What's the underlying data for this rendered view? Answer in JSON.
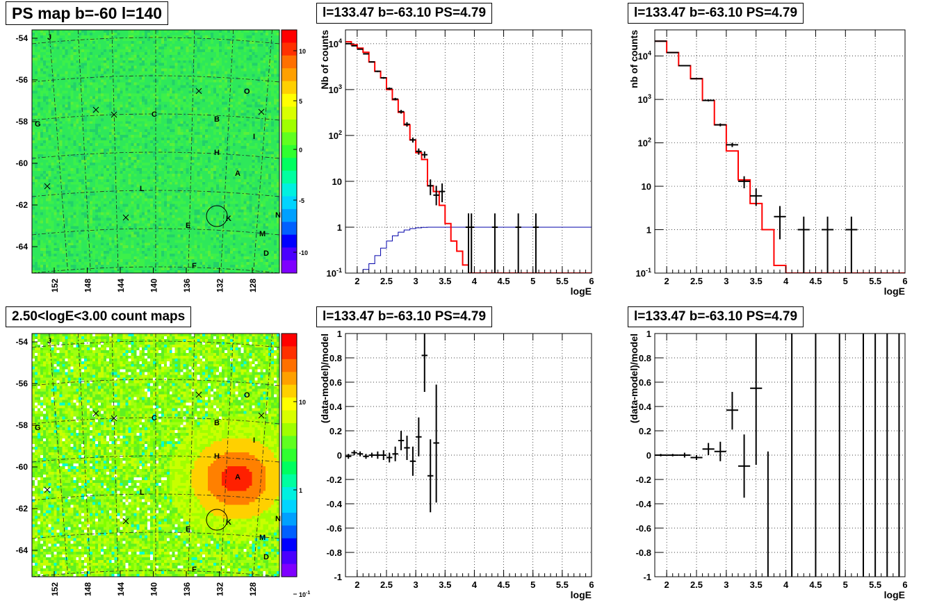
{
  "panel_titles": {
    "ps_map": "PS map b=-60 l=140",
    "count_map": "2.50<logE<3.00 count maps",
    "spec_left": "l=133.47 b=-63.10 PS=4.79",
    "spec_right": "l=133.47 b=-63.10 PS=4.79",
    "resid_left": "l=133.47 b=-63.10 PS=4.79",
    "resid_right": "l=133.47 b=-63.10 PS=4.79"
  },
  "colors": {
    "model": "#ff0000",
    "data": "#000000",
    "reference": "#0000aa"
  },
  "chart_data": [
    {
      "type": "heatmap",
      "title": "PS map b=-60 l=140",
      "y_ticks": [
        "-54",
        "-56",
        "-58",
        "-60",
        "-62",
        "-64"
      ],
      "x_ticks": [
        "152",
        "148",
        "144",
        "140",
        "136",
        "132",
        "128"
      ],
      "colorbar_ticks": [
        "10",
        "5",
        "0",
        "-5",
        "-10"
      ],
      "source_labels": [
        "J",
        "O",
        "G",
        "C",
        "B",
        "I",
        "H",
        "A",
        "L",
        "K",
        "E",
        "M",
        "N",
        "D",
        "F"
      ],
      "grid": "on"
    },
    {
      "type": "heatmap",
      "title": "2.50<logE<3.00 count maps",
      "y_ticks": [
        "-54",
        "-56",
        "-58",
        "-60",
        "-62",
        "-64"
      ],
      "x_ticks": [
        "152",
        "148",
        "144",
        "140",
        "136",
        "132",
        "128"
      ],
      "colorbar_ticks": [
        "10",
        "1",
        "10"
      ],
      "colorbar_exponent": "-1",
      "source_labels": [
        "J",
        "O",
        "G",
        "C",
        "B",
        "I",
        "H",
        "A",
        "L",
        "K",
        "E",
        "M",
        "N",
        "D",
        "F"
      ],
      "grid": "on"
    },
    {
      "type": "line",
      "title": "l=133.47 b=-63.10 PS=4.79",
      "xlabel": "logE",
      "ylabel": "Nb of counts",
      "yscale": "log",
      "xlim": [
        1.8,
        6
      ],
      "ylim": [
        0.1,
        20000
      ],
      "x_ticks": [
        "2",
        "2.5",
        "3",
        "3.5",
        "4",
        "4.5",
        "5",
        "5.5",
        "6"
      ],
      "y_ticks": [
        {
          "value": 10000,
          "base": "10",
          "exp": "4"
        },
        {
          "value": 1000,
          "base": "10",
          "exp": "3"
        },
        {
          "value": 100,
          "base": "10",
          "exp": "2"
        },
        {
          "value": 10,
          "base": "10",
          "exp": ""
        },
        {
          "value": 1,
          "base": "1",
          "exp": ""
        },
        {
          "value": 0.1,
          "base": "10",
          "exp": "-1"
        }
      ],
      "model_edges": [
        1.8,
        1.9,
        2.0,
        2.1,
        2.2,
        2.3,
        2.4,
        2.5,
        2.6,
        2.7,
        2.8,
        2.9,
        3.0,
        3.1,
        3.2,
        3.3,
        3.4,
        3.5,
        3.6,
        3.7,
        3.8,
        3.9,
        4.0,
        6.0
      ],
      "model_values": [
        11000,
        9500,
        8000,
        6500,
        4000,
        2500,
        1800,
        1000,
        600,
        320,
        170,
        80,
        42,
        30,
        8,
        6,
        3,
        1.2,
        0.5,
        0.3,
        0.15,
        0.1,
        0.1
      ],
      "reference_edges": [
        2.0,
        2.1,
        2.2,
        2.3,
        2.4,
        2.5,
        2.6,
        2.7,
        2.8,
        2.9,
        3.0,
        3.1,
        3.2,
        3.3,
        6.0
      ],
      "reference_values": [
        0.1,
        0.12,
        0.16,
        0.24,
        0.35,
        0.5,
        0.65,
        0.78,
        0.87,
        0.93,
        0.97,
        0.99,
        1.0,
        1.0
      ],
      "data_points": [
        {
          "x": 1.85,
          "y": 10000,
          "lo": 9800,
          "hi": 10200,
          "xw": 0.05
        },
        {
          "x": 1.95,
          "y": 9000,
          "lo": 8800,
          "hi": 9200,
          "xw": 0.05
        },
        {
          "x": 2.05,
          "y": 7600,
          "lo": 7400,
          "hi": 7800,
          "xw": 0.05
        },
        {
          "x": 2.15,
          "y": 6000,
          "lo": 5850,
          "hi": 6150,
          "xw": 0.05
        },
        {
          "x": 2.25,
          "y": 4000,
          "lo": 3880,
          "hi": 4120,
          "xw": 0.05
        },
        {
          "x": 2.35,
          "y": 2500,
          "lo": 2400,
          "hi": 2600,
          "xw": 0.05
        },
        {
          "x": 2.45,
          "y": 1800,
          "lo": 1720,
          "hi": 1880,
          "xw": 0.05
        },
        {
          "x": 2.55,
          "y": 1050,
          "lo": 990,
          "hi": 1110,
          "xw": 0.05
        },
        {
          "x": 2.65,
          "y": 620,
          "lo": 580,
          "hi": 660,
          "xw": 0.05
        },
        {
          "x": 2.75,
          "y": 330,
          "lo": 300,
          "hi": 360,
          "xw": 0.05
        },
        {
          "x": 2.85,
          "y": 175,
          "lo": 155,
          "hi": 195,
          "xw": 0.05
        },
        {
          "x": 2.95,
          "y": 80,
          "lo": 70,
          "hi": 90,
          "xw": 0.05
        },
        {
          "x": 3.05,
          "y": 45,
          "lo": 38,
          "hi": 52,
          "xw": 0.05
        },
        {
          "x": 3.15,
          "y": 38,
          "lo": 32,
          "hi": 45,
          "xw": 0.05
        },
        {
          "x": 3.25,
          "y": 8,
          "lo": 5,
          "hi": 11,
          "xw": 0.05
        },
        {
          "x": 3.35,
          "y": 5,
          "lo": 3,
          "hi": 8,
          "xw": 0.05
        },
        {
          "x": 3.45,
          "y": 6,
          "lo": 3.5,
          "hi": 9,
          "xw": 0.05
        },
        {
          "x": 3.9,
          "y": 1,
          "lo": 0.1,
          "hi": 2,
          "xw": 0.05
        },
        {
          "x": 3.95,
          "y": 1,
          "lo": 0.1,
          "hi": 2,
          "xw": 0.05
        },
        {
          "x": 4.35,
          "y": 1,
          "lo": 0.1,
          "hi": 2,
          "xw": 0.05
        },
        {
          "x": 4.75,
          "y": 1,
          "lo": 0.1,
          "hi": 2,
          "xw": 0.05
        },
        {
          "x": 5.05,
          "y": 1,
          "lo": 0.1,
          "hi": 2,
          "xw": 0.05
        }
      ],
      "grid": "on"
    },
    {
      "type": "line",
      "title": "l=133.47 b=-63.10 PS=4.79",
      "xlabel": "logE",
      "ylabel": "nb of counts",
      "yscale": "log",
      "xlim": [
        1.8,
        6
      ],
      "ylim": [
        0.1,
        40000
      ],
      "x_ticks": [
        "2",
        "2.5",
        "3",
        "3.5",
        "4",
        "4.5",
        "5",
        "5.5",
        "6"
      ],
      "y_ticks": [
        {
          "value": 10000,
          "base": "10",
          "exp": "4"
        },
        {
          "value": 1000,
          "base": "10",
          "exp": "3"
        },
        {
          "value": 100,
          "base": "10",
          "exp": "2"
        },
        {
          "value": 10,
          "base": "10",
          "exp": ""
        },
        {
          "value": 1,
          "base": "1",
          "exp": ""
        },
        {
          "value": 0.1,
          "base": "10",
          "exp": "-1"
        }
      ],
      "model_edges": [
        1.8,
        2.0,
        2.2,
        2.4,
        2.6,
        2.8,
        3.0,
        3.2,
        3.4,
        3.6,
        3.8,
        4.0,
        6.0
      ],
      "model_values": [
        22000,
        12000,
        6000,
        3000,
        950,
        260,
        65,
        14,
        4,
        1,
        0.15,
        0.1
      ],
      "data_points": [
        {
          "x": 1.9,
          "y": 22000,
          "lo": 21500,
          "hi": 22500,
          "xw": 0.1
        },
        {
          "x": 2.1,
          "y": 12000,
          "lo": 11700,
          "hi": 12300,
          "xw": 0.1
        },
        {
          "x": 2.3,
          "y": 6000,
          "lo": 5800,
          "hi": 6200,
          "xw": 0.1
        },
        {
          "x": 2.5,
          "y": 3000,
          "lo": 2900,
          "hi": 3100,
          "xw": 0.1
        },
        {
          "x": 2.7,
          "y": 950,
          "lo": 900,
          "hi": 1000,
          "xw": 0.1
        },
        {
          "x": 2.9,
          "y": 260,
          "lo": 240,
          "hi": 280,
          "xw": 0.1
        },
        {
          "x": 3.1,
          "y": 90,
          "lo": 80,
          "hi": 100,
          "xw": 0.1
        },
        {
          "x": 3.3,
          "y": 13,
          "lo": 9,
          "hi": 17,
          "xw": 0.1
        },
        {
          "x": 3.5,
          "y": 6,
          "lo": 3.5,
          "hi": 9,
          "xw": 0.1
        },
        {
          "x": 3.9,
          "y": 2,
          "lo": 0.6,
          "hi": 3.5,
          "xw": 0.1
        },
        {
          "x": 4.3,
          "y": 1,
          "lo": 0.1,
          "hi": 2,
          "xw": 0.1
        },
        {
          "x": 4.7,
          "y": 1,
          "lo": 0.1,
          "hi": 2,
          "xw": 0.1
        },
        {
          "x": 5.1,
          "y": 1,
          "lo": 0.1,
          "hi": 2,
          "xw": 0.1
        }
      ],
      "grid": "on"
    },
    {
      "type": "scatter",
      "title": "l=133.47 b=-63.10 PS=4.79",
      "xlabel": "logE",
      "ylabel": "(data-model)/model",
      "xlim": [
        1.8,
        6
      ],
      "ylim": [
        -1,
        1
      ],
      "x_ticks": [
        "2",
        "2.5",
        "3",
        "3.5",
        "4",
        "4.5",
        "5",
        "5.5",
        "6"
      ],
      "y_ticks": [
        "1",
        "0.8",
        "0.6",
        "0.4",
        "0.2",
        "0",
        "-0.2",
        "-0.4",
        "-0.6",
        "-0.8",
        "-1"
      ],
      "data_points": [
        {
          "x": 1.85,
          "y": -0.01,
          "lo": -0.03,
          "hi": 0.01,
          "xw": 0.05
        },
        {
          "x": 1.95,
          "y": 0.02,
          "lo": 0.0,
          "hi": 0.04,
          "xw": 0.05
        },
        {
          "x": 2.05,
          "y": 0.01,
          "lo": -0.01,
          "hi": 0.03,
          "xw": 0.05
        },
        {
          "x": 2.15,
          "y": -0.01,
          "lo": -0.03,
          "hi": 0.01,
          "xw": 0.05
        },
        {
          "x": 2.25,
          "y": 0.0,
          "lo": -0.02,
          "hi": 0.02,
          "xw": 0.05
        },
        {
          "x": 2.35,
          "y": 0.0,
          "lo": -0.03,
          "hi": 0.03,
          "xw": 0.05
        },
        {
          "x": 2.45,
          "y": 0.0,
          "lo": -0.04,
          "hi": 0.04,
          "xw": 0.05
        },
        {
          "x": 2.55,
          "y": -0.02,
          "lo": -0.06,
          "hi": 0.02,
          "xw": 0.05
        },
        {
          "x": 2.65,
          "y": 0.01,
          "lo": -0.05,
          "hi": 0.07,
          "xw": 0.05
        },
        {
          "x": 2.75,
          "y": 0.12,
          "lo": 0.04,
          "hi": 0.2,
          "xw": 0.05
        },
        {
          "x": 2.85,
          "y": 0.06,
          "lo": -0.04,
          "hi": 0.16,
          "xw": 0.05
        },
        {
          "x": 2.95,
          "y": -0.05,
          "lo": -0.17,
          "hi": 0.07,
          "xw": 0.05
        },
        {
          "x": 3.05,
          "y": 0.15,
          "lo": -0.01,
          "hi": 0.31,
          "xw": 0.05
        },
        {
          "x": 3.15,
          "y": 0.82,
          "lo": 0.52,
          "hi": 1.0,
          "xw": 0.05
        },
        {
          "x": 3.25,
          "y": -0.17,
          "lo": -0.47,
          "hi": 0.13,
          "xw": 0.05
        },
        {
          "x": 3.35,
          "y": 0.1,
          "lo": -0.39,
          "hi": 0.58,
          "xw": 0.05
        }
      ],
      "grid": "on"
    },
    {
      "type": "scatter",
      "title": "l=133.47 b=-63.10 PS=4.79",
      "xlabel": "logE",
      "ylabel": "(data-model)/model",
      "xlim": [
        1.8,
        6
      ],
      "ylim": [
        -1,
        1
      ],
      "x_ticks": [
        "2",
        "2.5",
        "3",
        "3.5",
        "4",
        "4.5",
        "5",
        "5.5",
        "6"
      ],
      "y_ticks": [
        "1",
        "0.8",
        "0.6",
        "0.4",
        "0.2",
        "0",
        "-0.2",
        "-0.4",
        "-0.6",
        "-0.8",
        "-1"
      ],
      "data_points": [
        {
          "x": 1.9,
          "y": 0.0,
          "lo": -0.01,
          "hi": 0.01,
          "xw": 0.1
        },
        {
          "x": 2.1,
          "y": 0.0,
          "lo": -0.01,
          "hi": 0.01,
          "xw": 0.1
        },
        {
          "x": 2.3,
          "y": 0.0,
          "lo": -0.02,
          "hi": 0.02,
          "xw": 0.1
        },
        {
          "x": 2.5,
          "y": -0.02,
          "lo": -0.04,
          "hi": 0.0,
          "xw": 0.1
        },
        {
          "x": 2.7,
          "y": 0.05,
          "lo": 0.0,
          "hi": 0.1,
          "xw": 0.1
        },
        {
          "x": 2.9,
          "y": 0.03,
          "lo": -0.05,
          "hi": 0.11,
          "xw": 0.1
        },
        {
          "x": 3.1,
          "y": 0.37,
          "lo": 0.21,
          "hi": 0.52,
          "xw": 0.1
        },
        {
          "x": 3.3,
          "y": -0.09,
          "lo": -0.35,
          "hi": 0.17,
          "xw": 0.1
        },
        {
          "x": 3.5,
          "y": 0.55,
          "lo": -0.08,
          "hi": 1.0,
          "xw": 0.1
        },
        {
          "x": 3.7,
          "y": 1.5,
          "lo": -1.0,
          "hi": 0.03,
          "xw": 0.0
        },
        {
          "x": 4.1,
          "y": 1.5,
          "lo": -1.0,
          "hi": 1.0,
          "xw": 0.0
        },
        {
          "x": 4.5,
          "y": 1.5,
          "lo": -1.0,
          "hi": 1.0,
          "xw": 0.0
        },
        {
          "x": 4.9,
          "y": 1.5,
          "lo": -1.0,
          "hi": 1.0,
          "xw": 0.0
        },
        {
          "x": 5.3,
          "y": 1.5,
          "lo": -1.0,
          "hi": 1.0,
          "xw": 0.0
        },
        {
          "x": 5.5,
          "y": 1.5,
          "lo": -1.0,
          "hi": 1.0,
          "xw": 0.0
        },
        {
          "x": 5.7,
          "y": 1.5,
          "lo": -1.0,
          "hi": 1.0,
          "xw": 0.0
        },
        {
          "x": 5.9,
          "y": 1.5,
          "lo": -1.0,
          "hi": 1.0,
          "xw": 0.0
        }
      ],
      "grid": "on"
    }
  ]
}
